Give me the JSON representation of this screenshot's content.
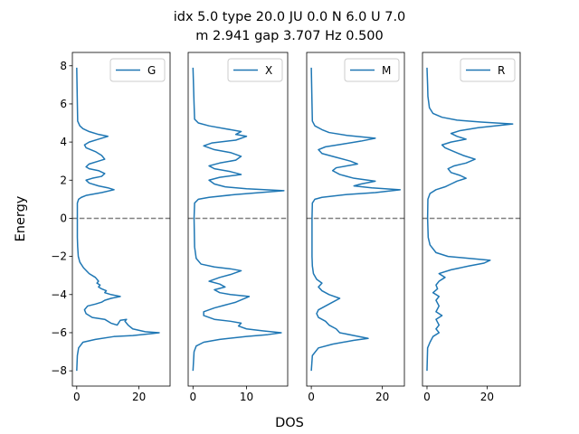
{
  "figure": {
    "title_line1": "idx 5.0 type 20.0 JU 0.0 N 6.0 U 7.0",
    "title_line2": "m 2.941 gap 3.707 Hz 0.500",
    "ylabel": "Energy",
    "xlabel": "DOS"
  },
  "chart_data": [
    {
      "type": "line",
      "legend": "G",
      "legend_position": "upper right",
      "series_color": "#1f77b4",
      "ylim": [
        -8.8,
        8.7
      ],
      "xlim": [
        -1.4,
        30
      ],
      "yticks": [
        -8,
        -6,
        -4,
        -2,
        0,
        2,
        4,
        6,
        8
      ],
      "ytick_labels": [
        "−8",
        "−6",
        "−4",
        "−2",
        "0",
        "2",
        "4",
        "6",
        "8"
      ],
      "xticks": [
        0,
        20
      ],
      "xtick_labels": [
        "0",
        "20"
      ],
      "fermi_level": 0,
      "points": [
        [
          0,
          -8
        ],
        [
          0.2,
          -7.2
        ],
        [
          0.6,
          -6.8
        ],
        [
          2,
          -6.5
        ],
        [
          6,
          -6.35
        ],
        [
          12,
          -6.2
        ],
        [
          18,
          -6.15
        ],
        [
          24,
          -6.05
        ],
        [
          26.5,
          -6.0
        ],
        [
          22,
          -5.95
        ],
        [
          18,
          -5.8
        ],
        [
          16.5,
          -5.6
        ],
        [
          15.5,
          -5.4
        ],
        [
          16,
          -5.3
        ],
        [
          14,
          -5.35
        ],
        [
          13,
          -5.6
        ],
        [
          11,
          -5.5
        ],
        [
          9,
          -5.3
        ],
        [
          5,
          -5.2
        ],
        [
          3,
          -5.0
        ],
        [
          2.5,
          -4.8
        ],
        [
          3.5,
          -4.6
        ],
        [
          6,
          -4.5
        ],
        [
          8,
          -4.4
        ],
        [
          9,
          -4.3
        ],
        [
          11,
          -4.2
        ],
        [
          14,
          -4.1
        ],
        [
          11,
          -4.0
        ],
        [
          9,
          -3.9
        ],
        [
          9.5,
          -3.8
        ],
        [
          8,
          -3.7
        ],
        [
          7,
          -3.6
        ],
        [
          7.5,
          -3.5
        ],
        [
          6.5,
          -3.4
        ],
        [
          7,
          -3.3
        ],
        [
          6,
          -3.1
        ],
        [
          4,
          -2.9
        ],
        [
          2.2,
          -2.6
        ],
        [
          1,
          -2.3
        ],
        [
          0.5,
          -2.0
        ],
        [
          0.3,
          -1.5
        ],
        [
          0.2,
          -1
        ],
        [
          0.2,
          0
        ],
        [
          0.2,
          0.8
        ],
        [
          0.6,
          1.0
        ],
        [
          1.5,
          1.1
        ],
        [
          3,
          1.2
        ],
        [
          8,
          1.35
        ],
        [
          12,
          1.5
        ],
        [
          10,
          1.6
        ],
        [
          7,
          1.7
        ],
        [
          4,
          1.85
        ],
        [
          3,
          2.0
        ],
        [
          5,
          2.1
        ],
        [
          8,
          2.2
        ],
        [
          9,
          2.35
        ],
        [
          7,
          2.5
        ],
        [
          4,
          2.6
        ],
        [
          3,
          2.7
        ],
        [
          4,
          2.85
        ],
        [
          7,
          3.0
        ],
        [
          9,
          3.1
        ],
        [
          8,
          3.3
        ],
        [
          6,
          3.5
        ],
        [
          3,
          3.7
        ],
        [
          2.5,
          3.85
        ],
        [
          4,
          4.0
        ],
        [
          7,
          4.15
        ],
        [
          10,
          4.3
        ],
        [
          7,
          4.4
        ],
        [
          4,
          4.55
        ],
        [
          2,
          4.7
        ],
        [
          1,
          4.85
        ],
        [
          0.3,
          5.1
        ],
        [
          0.2,
          6
        ],
        [
          0,
          7.9
        ]
      ]
    },
    {
      "type": "line",
      "legend": "X",
      "legend_position": "upper right",
      "series_color": "#1f77b4",
      "ylim": [
        -8.8,
        8.7
      ],
      "xlim": [
        -0.9,
        17.7
      ],
      "xticks": [
        0,
        10
      ],
      "xtick_labels": [
        "0",
        "10"
      ],
      "fermi_level": 0,
      "points": [
        [
          0,
          -8
        ],
        [
          0.2,
          -7.0
        ],
        [
          0.6,
          -6.7
        ],
        [
          2,
          -6.5
        ],
        [
          5,
          -6.35
        ],
        [
          10,
          -6.2
        ],
        [
          14,
          -6.1
        ],
        [
          16.5,
          -6.0
        ],
        [
          13,
          -5.9
        ],
        [
          10,
          -5.8
        ],
        [
          8.5,
          -5.65
        ],
        [
          9,
          -5.5
        ],
        [
          7,
          -5.4
        ],
        [
          4,
          -5.3
        ],
        [
          2,
          -5.1
        ],
        [
          2,
          -4.9
        ],
        [
          4,
          -4.7
        ],
        [
          6,
          -4.55
        ],
        [
          8,
          -4.4
        ],
        [
          10.5,
          -4.1
        ],
        [
          7,
          -4.0
        ],
        [
          5,
          -3.9
        ],
        [
          4,
          -3.75
        ],
        [
          6,
          -3.6
        ],
        [
          5,
          -3.45
        ],
        [
          3,
          -3.3
        ],
        [
          5,
          -3.1
        ],
        [
          7,
          -2.95
        ],
        [
          9,
          -2.75
        ],
        [
          7,
          -2.65
        ],
        [
          4,
          -2.55
        ],
        [
          1.5,
          -2.4
        ],
        [
          0.6,
          -2.1
        ],
        [
          0.3,
          -1.5
        ],
        [
          0.2,
          0
        ],
        [
          0.3,
          0.8
        ],
        [
          1,
          1.0
        ],
        [
          3,
          1.1
        ],
        [
          8,
          1.25
        ],
        [
          17,
          1.45
        ],
        [
          10,
          1.55
        ],
        [
          6,
          1.65
        ],
        [
          4,
          1.8
        ],
        [
          3,
          2.0
        ],
        [
          5,
          2.15
        ],
        [
          9,
          2.3
        ],
        [
          7,
          2.45
        ],
        [
          4,
          2.6
        ],
        [
          3,
          2.75
        ],
        [
          5,
          2.9
        ],
        [
          8,
          3.05
        ],
        [
          9,
          3.25
        ],
        [
          7,
          3.45
        ],
        [
          4,
          3.6
        ],
        [
          2,
          3.8
        ],
        [
          3.5,
          3.95
        ],
        [
          8,
          4.1
        ],
        [
          10,
          4.3
        ],
        [
          8,
          4.4
        ],
        [
          9,
          4.55
        ],
        [
          6,
          4.7
        ],
        [
          3,
          4.85
        ],
        [
          1,
          5.0
        ],
        [
          0.3,
          5.2
        ],
        [
          0.2,
          6
        ],
        [
          0,
          7.9
        ]
      ]
    },
    {
      "type": "line",
      "legend": "M",
      "legend_position": "upper right",
      "series_color": "#1f77b4",
      "ylim": [
        -8.8,
        8.7
      ],
      "xlim": [
        -1.3,
        26.2
      ],
      "xticks": [
        0,
        20
      ],
      "xtick_labels": [
        "0",
        "20"
      ],
      "fermi_level": 0,
      "points": [
        [
          0,
          -8
        ],
        [
          0.3,
          -7.2
        ],
        [
          2,
          -6.8
        ],
        [
          6,
          -6.6
        ],
        [
          12,
          -6.4
        ],
        [
          16,
          -6.3
        ],
        [
          12,
          -6.15
        ],
        [
          8,
          -6.0
        ],
        [
          7,
          -5.8
        ],
        [
          5,
          -5.6
        ],
        [
          4,
          -5.4
        ],
        [
          2,
          -5.2
        ],
        [
          1.5,
          -5.0
        ],
        [
          2,
          -4.8
        ],
        [
          4,
          -4.6
        ],
        [
          6,
          -4.4
        ],
        [
          8,
          -4.2
        ],
        [
          5,
          -4.0
        ],
        [
          3,
          -3.8
        ],
        [
          2,
          -3.6
        ],
        [
          3,
          -3.4
        ],
        [
          1.5,
          -3.2
        ],
        [
          0.6,
          -2.9
        ],
        [
          0.3,
          -2.5
        ],
        [
          0.2,
          -2
        ],
        [
          0.2,
          0
        ],
        [
          0.3,
          0.8
        ],
        [
          1,
          1.0
        ],
        [
          3,
          1.1
        ],
        [
          10,
          1.25
        ],
        [
          18,
          1.35
        ],
        [
          25,
          1.5
        ],
        [
          17,
          1.6
        ],
        [
          12,
          1.7
        ],
        [
          14,
          1.8
        ],
        [
          18,
          1.95
        ],
        [
          12,
          2.1
        ],
        [
          8,
          2.3
        ],
        [
          6,
          2.5
        ],
        [
          7,
          2.65
        ],
        [
          13,
          2.85
        ],
        [
          11,
          3.0
        ],
        [
          7,
          3.2
        ],
        [
          3,
          3.4
        ],
        [
          2,
          3.6
        ],
        [
          4,
          3.75
        ],
        [
          9,
          3.9
        ],
        [
          14,
          4.05
        ],
        [
          18,
          4.2
        ],
        [
          10,
          4.35
        ],
        [
          5,
          4.5
        ],
        [
          3,
          4.65
        ],
        [
          1,
          4.85
        ],
        [
          0.3,
          5.1
        ],
        [
          0.2,
          6
        ],
        [
          0,
          7.9
        ]
      ]
    },
    {
      "type": "line",
      "legend": "R",
      "legend_position": "upper right",
      "series_color": "#1f77b4",
      "ylim": [
        -8.8,
        8.7
      ],
      "xlim": [
        -1.5,
        31
      ],
      "xticks": [
        0,
        20
      ],
      "xtick_labels": [
        "0",
        "20"
      ],
      "fermi_level": 0,
      "points": [
        [
          0,
          -8
        ],
        [
          0.2,
          -6.8
        ],
        [
          1,
          -6.5
        ],
        [
          2,
          -6.2
        ],
        [
          4,
          -6.0
        ],
        [
          3,
          -5.8
        ],
        [
          4,
          -5.6
        ],
        [
          3,
          -5.3
        ],
        [
          5,
          -5.1
        ],
        [
          3,
          -4.9
        ],
        [
          4,
          -4.6
        ],
        [
          3,
          -4.3
        ],
        [
          4,
          -4.1
        ],
        [
          2,
          -3.9
        ],
        [
          3.5,
          -3.7
        ],
        [
          3,
          -3.5
        ],
        [
          4,
          -3.3
        ],
        [
          6,
          -3.1
        ],
        [
          4,
          -2.9
        ],
        [
          8,
          -2.7
        ],
        [
          14,
          -2.5
        ],
        [
          19,
          -2.35
        ],
        [
          21,
          -2.2
        ],
        [
          14,
          -2.1
        ],
        [
          7,
          -2.0
        ],
        [
          3,
          -1.8
        ],
        [
          1,
          -1.4
        ],
        [
          0.4,
          -1.0
        ],
        [
          0.2,
          0
        ],
        [
          0.3,
          1.0
        ],
        [
          1,
          1.3
        ],
        [
          3,
          1.5
        ],
        [
          6,
          1.65
        ],
        [
          8,
          1.8
        ],
        [
          10,
          1.95
        ],
        [
          13,
          2.1
        ],
        [
          11,
          2.25
        ],
        [
          8,
          2.4
        ],
        [
          7,
          2.6
        ],
        [
          9,
          2.75
        ],
        [
          13,
          2.9
        ],
        [
          16,
          3.1
        ],
        [
          12,
          3.3
        ],
        [
          9,
          3.5
        ],
        [
          6,
          3.7
        ],
        [
          5,
          3.85
        ],
        [
          8,
          4.0
        ],
        [
          13,
          4.15
        ],
        [
          10,
          4.3
        ],
        [
          8,
          4.45
        ],
        [
          11,
          4.6
        ],
        [
          17,
          4.75
        ],
        [
          28.5,
          4.95
        ],
        [
          18,
          5.05
        ],
        [
          10,
          5.15
        ],
        [
          5,
          5.3
        ],
        [
          2,
          5.5
        ],
        [
          0.8,
          5.8
        ],
        [
          0.3,
          6.4
        ],
        [
          0.2,
          7
        ],
        [
          0,
          7.9
        ]
      ]
    }
  ]
}
